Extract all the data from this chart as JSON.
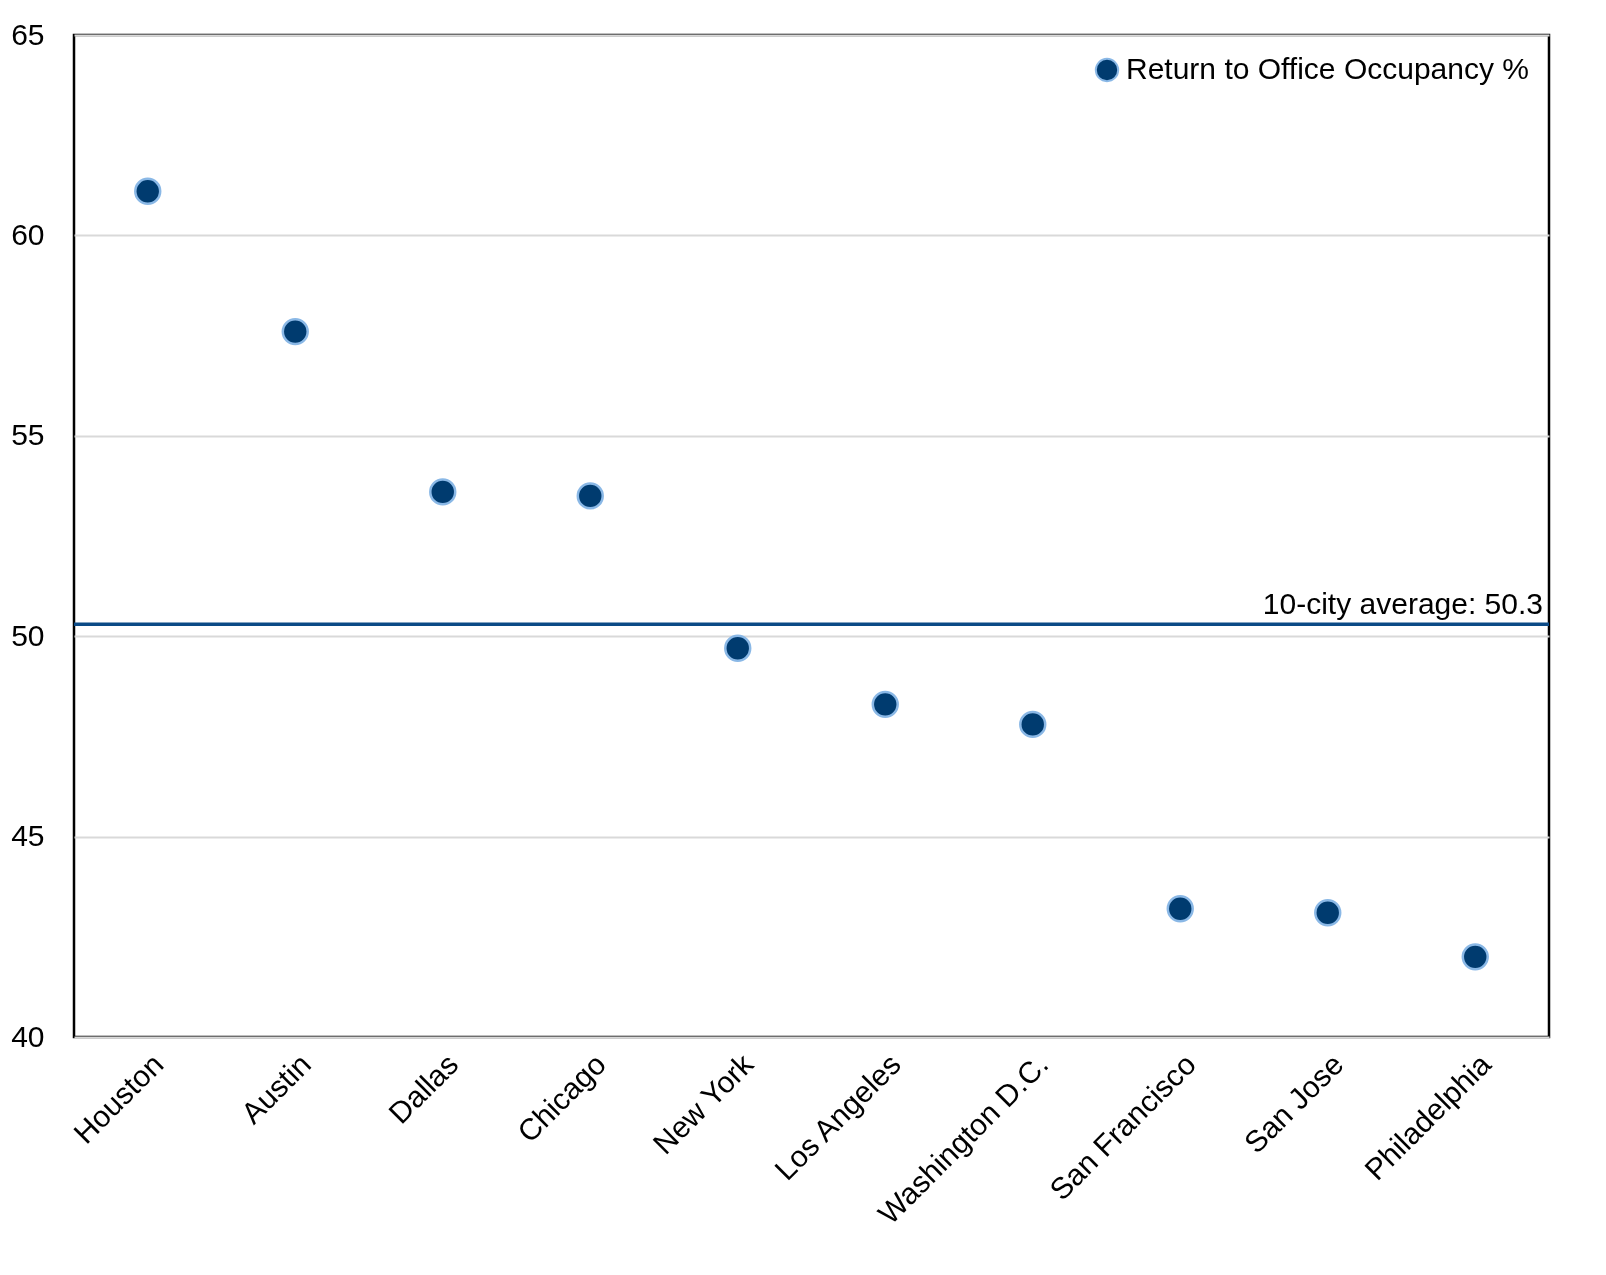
{
  "chart_data": {
    "type": "scatter",
    "categories": [
      "Houston",
      "Austin",
      "Dallas",
      "Chicago",
      "New York",
      "Los Angeles",
      "Washington D.C.",
      "San Francisco",
      "San Jose",
      "Philadelphia"
    ],
    "series": [
      {
        "name": "Return to Office Occupancy %",
        "color": "#003b6f",
        "values": [
          61.1,
          57.6,
          53.6,
          53.5,
          49.7,
          48.3,
          47.8,
          43.2,
          43.1,
          42.0
        ]
      }
    ],
    "ylim": [
      40,
      65
    ],
    "yticks": [
      40,
      45,
      50,
      55,
      60,
      65
    ],
    "grid": "y",
    "legend": "top right",
    "marker": "circle",
    "ref_lines": [
      {
        "axis": "y",
        "value": 50.3,
        "label": "10-city average: 50.3",
        "color": "#0b4a86"
      }
    ]
  }
}
